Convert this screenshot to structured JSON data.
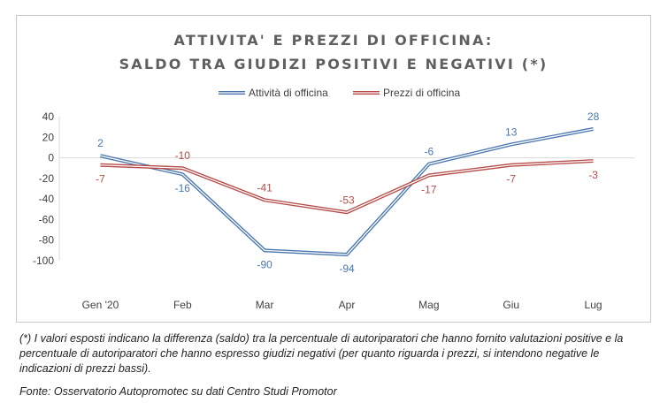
{
  "chart_data": {
    "type": "line",
    "title": [
      "ATTIVITA' E PREZZI DI OFFICINA:",
      "SALDO TRA GIUDIZI POSITIVI E NEGATIVI (*)"
    ],
    "categories": [
      "Gen '20",
      "Feb",
      "Mar",
      "Apr",
      "Mag",
      "Giu",
      "Lug"
    ],
    "series": [
      {
        "name": "Attività di officina",
        "color": "#4a76b0",
        "values": [
          2,
          -16,
          -90,
          -94,
          -6,
          13,
          28
        ],
        "labels": [
          "2",
          "-16",
          "-90",
          "-94",
          "-6",
          "13",
          "28"
        ]
      },
      {
        "name": "Prezzi di officina",
        "color": "#b64a47",
        "values": [
          -7,
          -10,
          -41,
          -53,
          -17,
          -7,
          -3
        ],
        "labels": [
          "-7",
          "-10",
          "-41",
          "-53",
          "-17",
          "-7",
          "-3"
        ]
      }
    ],
    "yticks": [
      "40",
      "20",
      "0",
      "-20",
      "-40",
      "-60",
      "-80",
      "-100"
    ],
    "ylim": [
      -100,
      40
    ],
    "xlabel": "",
    "ylabel": "",
    "legend": "top-center",
    "grid": false
  },
  "note": "(*) I valori esposti indicano la differenza (saldo) tra la percentuale di autoriparatori che hanno fornito valutazioni positive e la percentuale di autoriparatori che hanno espresso giudizi negativi (per quanto riguarda i prezzi, si intendono negative le indicazioni di prezzi bassi).",
  "source": "Fonte: Osservatorio Autopromotec su dati Centro Studi Promotor"
}
